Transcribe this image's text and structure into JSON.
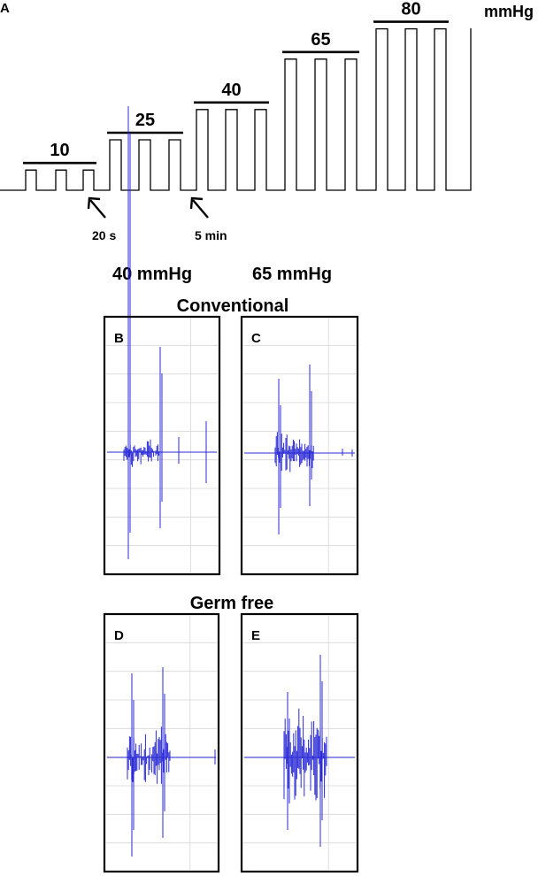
{
  "panel_a": {
    "letter": "A",
    "unit": "mmHg",
    "steps": [
      {
        "label": "10",
        "level": 10
      },
      {
        "label": "25",
        "level": 25
      },
      {
        "label": "40",
        "level": 40
      },
      {
        "label": "65",
        "level": 65
      },
      {
        "label": "80",
        "level": 80
      }
    ],
    "annotations": {
      "pulse": "20 s",
      "interval": "5 min"
    }
  },
  "headers": {
    "left_pressure": "40 mmHg",
    "right_pressure": "65 mmHg",
    "top_group": "Conventional",
    "bottom_group": "Germ free"
  },
  "panels": [
    {
      "letter": "B"
    },
    {
      "letter": "C"
    },
    {
      "letter": "D"
    },
    {
      "letter": "E"
    }
  ],
  "colors": {
    "trace": "#2a2ad6",
    "grid": "#d6d6d6",
    "line": "#000000"
  }
}
